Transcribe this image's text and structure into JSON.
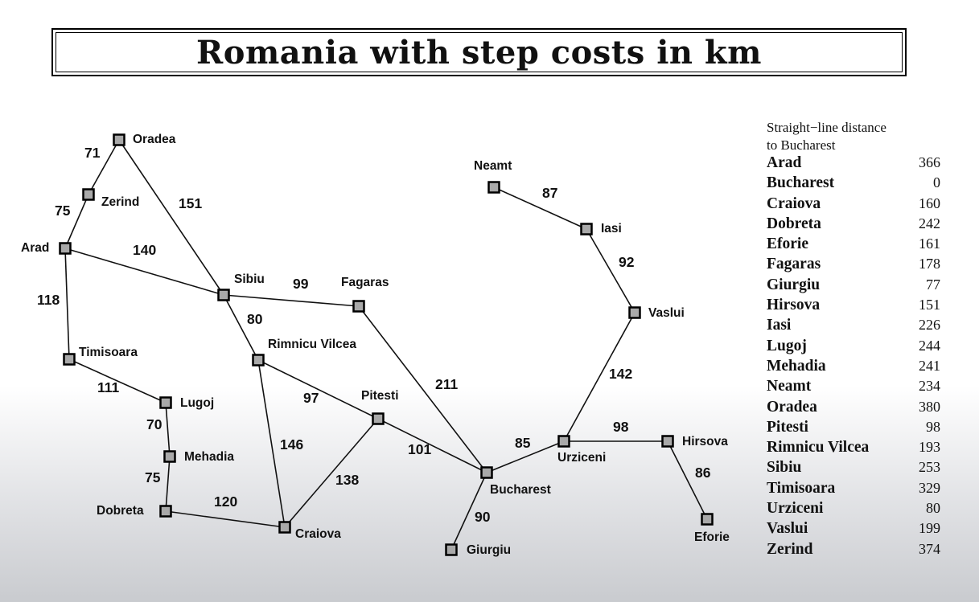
{
  "title": "Romania with step costs in km",
  "colors": {
    "node_fill": "#a9a9a9",
    "ink": "#111111"
  },
  "cities": [
    {
      "id": "oradea",
      "name": "Oradea"
    },
    {
      "id": "zerind",
      "name": "Zerind"
    },
    {
      "id": "arad",
      "name": "Arad"
    },
    {
      "id": "timisoara",
      "name": "Timisoara"
    },
    {
      "id": "lugoj",
      "name": "Lugoj"
    },
    {
      "id": "mehadia",
      "name": "Mehadia"
    },
    {
      "id": "dobreta",
      "name": "Dobreta"
    },
    {
      "id": "sibiu",
      "name": "Sibiu"
    },
    {
      "id": "rimnicu",
      "name": "Rimnicu Vilcea"
    },
    {
      "id": "craiova",
      "name": "Craiova"
    },
    {
      "id": "fagaras",
      "name": "Fagaras"
    },
    {
      "id": "pitesti",
      "name": "Pitesti"
    },
    {
      "id": "bucharest",
      "name": "Bucharest"
    },
    {
      "id": "giurgiu",
      "name": "Giurgiu"
    },
    {
      "id": "urziceni",
      "name": "Urziceni"
    },
    {
      "id": "hirsova",
      "name": "Hirsova"
    },
    {
      "id": "eforie",
      "name": "Eforie"
    },
    {
      "id": "vaslui",
      "name": "Vaslui"
    },
    {
      "id": "iasi",
      "name": "Iasi"
    },
    {
      "id": "neamt",
      "name": "Neamt"
    }
  ],
  "roads": [
    {
      "from": "oradea",
      "to": "zerind",
      "cost": "71"
    },
    {
      "from": "zerind",
      "to": "arad",
      "cost": "75"
    },
    {
      "from": "oradea",
      "to": "sibiu",
      "cost": "151"
    },
    {
      "from": "arad",
      "to": "sibiu",
      "cost": "140"
    },
    {
      "from": "arad",
      "to": "timisoara",
      "cost": "118"
    },
    {
      "from": "timisoara",
      "to": "lugoj",
      "cost": "111"
    },
    {
      "from": "lugoj",
      "to": "mehadia",
      "cost": "70"
    },
    {
      "from": "mehadia",
      "to": "dobreta",
      "cost": "75"
    },
    {
      "from": "dobreta",
      "to": "craiova",
      "cost": "120"
    },
    {
      "from": "sibiu",
      "to": "fagaras",
      "cost": "99"
    },
    {
      "from": "sibiu",
      "to": "rimnicu",
      "cost": "80"
    },
    {
      "from": "rimnicu",
      "to": "pitesti",
      "cost": "97"
    },
    {
      "from": "rimnicu",
      "to": "craiova",
      "cost": "146"
    },
    {
      "from": "craiova",
      "to": "pitesti",
      "cost": "138"
    },
    {
      "from": "pitesti",
      "to": "bucharest",
      "cost": "101"
    },
    {
      "from": "fagaras",
      "to": "bucharest",
      "cost": "211"
    },
    {
      "from": "bucharest",
      "to": "giurgiu",
      "cost": "90"
    },
    {
      "from": "bucharest",
      "to": "urziceni",
      "cost": "85"
    },
    {
      "from": "urziceni",
      "to": "hirsova",
      "cost": "98"
    },
    {
      "from": "hirsova",
      "to": "eforie",
      "cost": "86"
    },
    {
      "from": "urziceni",
      "to": "vaslui",
      "cost": "142"
    },
    {
      "from": "vaslui",
      "to": "iasi",
      "cost": "92"
    },
    {
      "from": "iasi",
      "to": "neamt",
      "cost": "87"
    }
  ],
  "straight_line": {
    "header_line1": "Straight−line distance",
    "header_line2": "to Bucharest",
    "rows": [
      {
        "city": "Arad",
        "dist": "366"
      },
      {
        "city": "Bucharest",
        "dist": "0"
      },
      {
        "city": "Craiova",
        "dist": "160"
      },
      {
        "city": "Dobreta",
        "dist": "242"
      },
      {
        "city": "Eforie",
        "dist": "161"
      },
      {
        "city": "Fagaras",
        "dist": "178"
      },
      {
        "city": "Giurgiu",
        "dist": "77"
      },
      {
        "city": "Hirsova",
        "dist": "151"
      },
      {
        "city": "Iasi",
        "dist": "226"
      },
      {
        "city": "Lugoj",
        "dist": "244"
      },
      {
        "city": "Mehadia",
        "dist": "241"
      },
      {
        "city": "Neamt",
        "dist": "234"
      },
      {
        "city": "Oradea",
        "dist": "380"
      },
      {
        "city": "Pitesti",
        "dist": "98"
      },
      {
        "city": "Rimnicu Vilcea",
        "dist": "193"
      },
      {
        "city": "Sibiu",
        "dist": "253"
      },
      {
        "city": "Timisoara",
        "dist": "329"
      },
      {
        "city": "Urziceni",
        "dist": "80"
      },
      {
        "city": "Vaslui",
        "dist": "199"
      },
      {
        "city": "Zerind",
        "dist": "374"
      }
    ]
  }
}
